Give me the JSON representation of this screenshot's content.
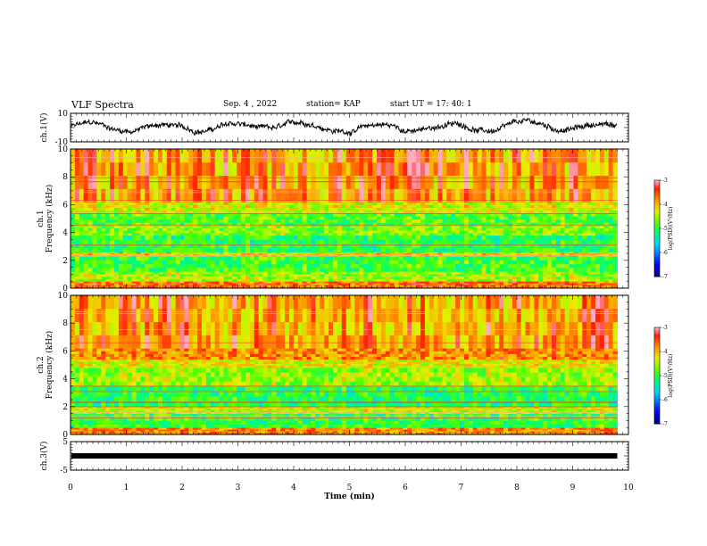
{
  "header": {
    "title": "VLF Spectra",
    "date": "Sep. 4 , 2022",
    "station": "station= KAP",
    "start": "start  UT  =    17: 40: 1"
  },
  "chart_data": [
    {
      "type": "line",
      "name": "ch1-waveform",
      "ylabel": "ch.1(V)",
      "ylim": [
        -10,
        10
      ],
      "yticks": [
        "10",
        "-10"
      ],
      "xlim": [
        0,
        10
      ],
      "duration_min": 9.8,
      "mean_level": 0,
      "amplitude": 6,
      "color": "#000000"
    },
    {
      "type": "heatmap",
      "name": "ch1-spectrogram",
      "ylabel": "Frequency (kHz)",
      "channel_label": "ch.1",
      "ylim": [
        0,
        10
      ],
      "yticks": [
        "0",
        "2",
        "4",
        "6",
        "8",
        "10"
      ],
      "xlim": [
        0,
        10
      ],
      "duration_min": 9.8,
      "colorbar": {
        "label": "log(PSD)(V²/Hz)",
        "range": [
          -7,
          -3
        ],
        "ticks": [
          "-3",
          "-4",
          "-5",
          "-6",
          "-7"
        ]
      },
      "bands": [
        {
          "f": [
            0.0,
            0.5
          ],
          "level": -3.7
        },
        {
          "f": [
            0.5,
            1.2
          ],
          "level": -4.6
        },
        {
          "f": [
            1.2,
            2.3
          ],
          "level": -5.0
        },
        {
          "f": [
            2.3,
            2.6
          ],
          "level": -4.2
        },
        {
          "f": [
            2.6,
            3.8
          ],
          "level": -5.1
        },
        {
          "f": [
            3.8,
            4.5
          ],
          "level": -4.7
        },
        {
          "f": [
            4.5,
            5.4
          ],
          "level": -4.9
        },
        {
          "f": [
            5.4,
            6.2
          ],
          "level": -4.4
        },
        {
          "f": [
            6.2,
            10.0
          ],
          "level": -4.0
        }
      ]
    },
    {
      "type": "heatmap",
      "name": "ch2-spectrogram",
      "ylabel": "Frequency (kHz)",
      "channel_label": "ch.2",
      "ylim": [
        0,
        10
      ],
      "yticks": [
        "0",
        "2",
        "4",
        "6",
        "8",
        "10"
      ],
      "xlim": [
        0,
        10
      ],
      "duration_min": 9.8,
      "colorbar": {
        "label": "log(PSD)(V²/Hz)",
        "range": [
          -7,
          -3
        ],
        "ticks": [
          "-3",
          "-4",
          "-5",
          "-6",
          "-7"
        ]
      },
      "bands": [
        {
          "f": [
            0.0,
            0.5
          ],
          "level": -3.8
        },
        {
          "f": [
            0.5,
            1.5
          ],
          "level": -5.0
        },
        {
          "f": [
            1.5,
            2.0
          ],
          "level": -4.4
        },
        {
          "f": [
            2.0,
            3.5
          ],
          "level": -5.1
        },
        {
          "f": [
            3.5,
            4.8
          ],
          "level": -4.6
        },
        {
          "f": [
            4.8,
            5.4
          ],
          "level": -4.3
        },
        {
          "f": [
            5.4,
            6.2
          ],
          "level": -3.8
        },
        {
          "f": [
            6.2,
            10.0
          ],
          "level": -4.0
        }
      ]
    },
    {
      "type": "line",
      "name": "ch3-waveform",
      "ylabel": "ch.3(V)",
      "ylim": [
        -5,
        5
      ],
      "yticks": [
        "5",
        "-5"
      ],
      "xlim": [
        0,
        10
      ],
      "duration_min": 9.8,
      "mean_level": 0,
      "amplitude": 0.5,
      "color": "#000000"
    }
  ],
  "x_axis": {
    "label": "Time  (min)",
    "ticks": [
      "0",
      "1",
      "2",
      "3",
      "4",
      "5",
      "6",
      "7",
      "8",
      "9",
      "10"
    ]
  }
}
